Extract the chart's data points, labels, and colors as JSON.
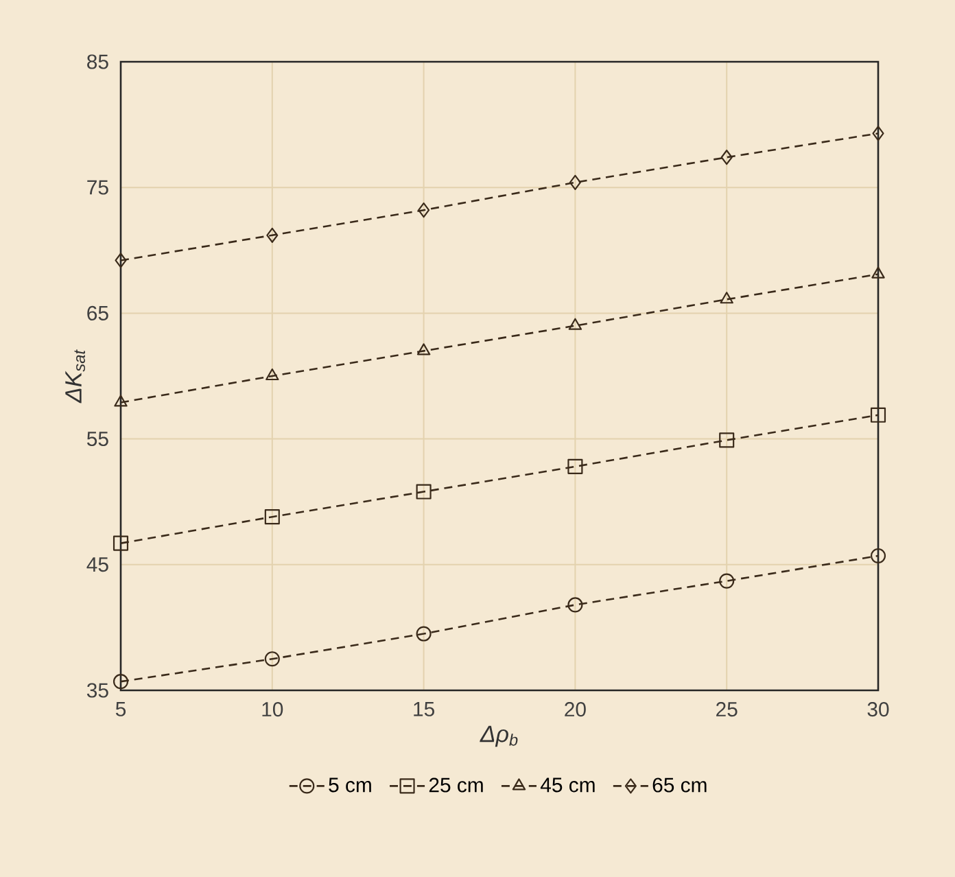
{
  "chart_data": {
    "type": "line",
    "xlabel": "Δρ$_{b}$",
    "ylabel": "ΔK$_{sat}$",
    "x": [
      5,
      10,
      15,
      20,
      25,
      30
    ],
    "xlim": [
      5,
      30
    ],
    "xticks": [
      5,
      10,
      15,
      20,
      25,
      30
    ],
    "ylim": [
      35,
      85
    ],
    "yticks": [
      35,
      45,
      55,
      65,
      75,
      85
    ],
    "grid": true,
    "legend": "bottom",
    "line_style": "dashed",
    "series": [
      {
        "name": "5 cm",
        "color": "#3a2a1a",
        "marker": "circle",
        "values": [
          35.7,
          37.5,
          39.5,
          41.8,
          43.7,
          45.7
        ]
      },
      {
        "name": "25 cm",
        "color": "#3a2a1a",
        "marker": "square",
        "values": [
          46.7,
          48.8,
          50.8,
          52.8,
          54.9,
          56.9
        ]
      },
      {
        "name": "45 cm",
        "color": "#3a2a1a",
        "marker": "triangle",
        "values": [
          57.9,
          60.0,
          62.0,
          64.0,
          66.1,
          68.1
        ]
      },
      {
        "name": "65 cm",
        "color": "#3a2a1a",
        "marker": "diamond",
        "values": [
          69.2,
          71.2,
          73.2,
          75.4,
          77.4,
          79.3
        ]
      }
    ]
  }
}
